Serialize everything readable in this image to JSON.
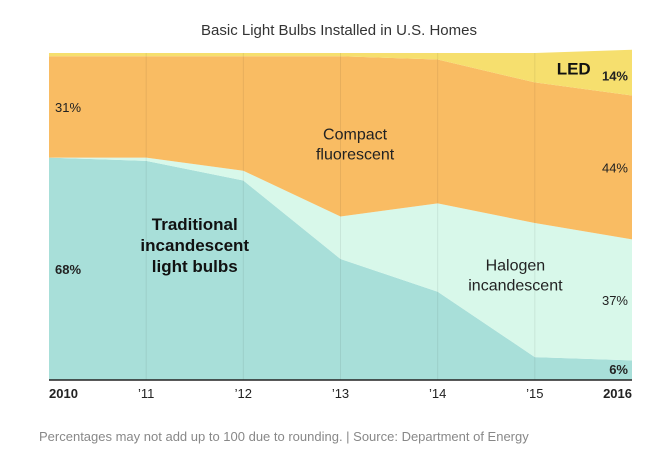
{
  "chart_data": {
    "type": "area",
    "stacked": true,
    "title": "Basic Light Bulbs Installed in U.S. Homes",
    "x_tick_labels": [
      "2010",
      "’11",
      "’12",
      "’13",
      "’14",
      "’15",
      "2016"
    ],
    "x": [
      2010,
      2011,
      2012,
      2013,
      2014,
      2015,
      2016
    ],
    "ylim": [
      0,
      100
    ],
    "grid": true,
    "series": [
      {
        "key": "traditional",
        "name_lines": [
          "Traditional",
          "incandescent",
          "light bulbs"
        ],
        "color": "#a8dfd9",
        "values": [
          68,
          67,
          61,
          37,
          27,
          7,
          6
        ]
      },
      {
        "key": "halogen",
        "name_lines": [
          "Halogen",
          "incandescent"
        ],
        "color": "#d8f8ea",
        "values": [
          0,
          1,
          3,
          13,
          27,
          41,
          37
        ]
      },
      {
        "key": "cfl",
        "name_lines": [
          "Compact",
          "fluorescent"
        ],
        "color": "#f9bc63",
        "values": [
          31,
          31,
          35,
          49,
          44,
          43,
          44
        ]
      },
      {
        "key": "led",
        "name_lines": [
          "LED"
        ],
        "color": "#f6df6e",
        "values": [
          0,
          0,
          0,
          1,
          2,
          7,
          14
        ]
      }
    ],
    "value_labels": [
      {
        "text": "31%",
        "series": "cfl",
        "x": 2010,
        "bold": false
      },
      {
        "text": "68%",
        "series": "traditional",
        "x": 2010,
        "bold": true
      },
      {
        "text": "14%",
        "series": "led",
        "x": 2016,
        "bold": true
      },
      {
        "text": "44%",
        "series": "cfl",
        "x": 2016,
        "bold": false
      },
      {
        "text": "37%",
        "series": "halogen",
        "x": 2016,
        "bold": false
      },
      {
        "text": "6%",
        "series": "traditional",
        "x": 2016,
        "bold": true
      }
    ],
    "source": "Percentages may not add up to 100 due to rounding. | Source: Department of Energy"
  }
}
